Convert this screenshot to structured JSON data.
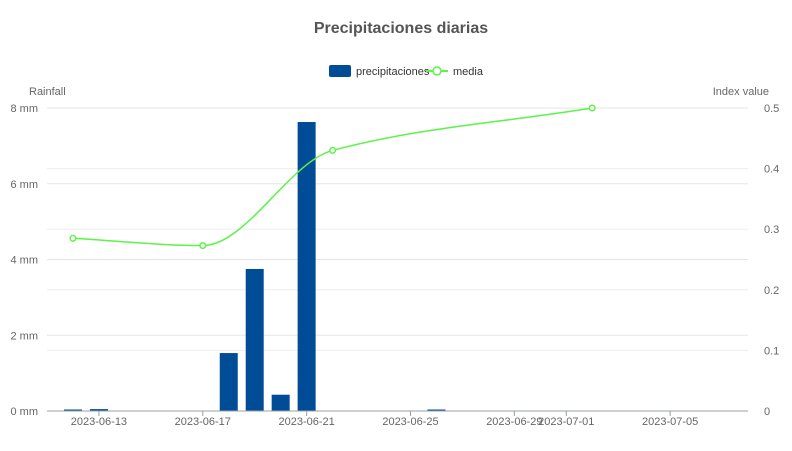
{
  "chart_data": {
    "type": "bar+line",
    "title": "Precipitaciones diarias",
    "legend": {
      "placement": "top-center",
      "items": [
        {
          "label": "precipitaciones",
          "color": "#004c97",
          "symbol": "bar"
        },
        {
          "label": "media",
          "color": "#5cf34a",
          "symbol": "line-circle"
        }
      ]
    },
    "x_axis": {
      "type": "time",
      "range": [
        "2023-06-11",
        "2023-07-08"
      ],
      "ticks": [
        "2023-06-13",
        "2023-06-17",
        "2023-06-21",
        "2023-06-25",
        "2023-06-29",
        "2023-07-01",
        "2023-07-05"
      ]
    },
    "y_axis_left": {
      "label": "Rainfall",
      "range": [
        0,
        8
      ],
      "ticks": [
        0,
        2,
        4,
        6,
        8
      ],
      "tick_labels": [
        "0 mm",
        "2 mm",
        "4 mm",
        "6 mm",
        "8 mm"
      ]
    },
    "y_axis_right": {
      "label": "Index value",
      "range": [
        0,
        0.5
      ],
      "ticks": [
        0,
        0.1,
        0.2,
        0.3,
        0.4,
        0.5
      ],
      "tick_labels": [
        "0",
        "0.1",
        "0.2",
        "0.3",
        "0.4",
        "0.5"
      ]
    },
    "grid": true,
    "series": [
      {
        "name": "precipitaciones",
        "type": "bar",
        "axis": "left",
        "color": "#004c97",
        "points": [
          {
            "x": "2023-06-12",
            "y": 0.02
          },
          {
            "x": "2023-06-13",
            "y": 0.05
          },
          {
            "x": "2023-06-18",
            "y": 1.53
          },
          {
            "x": "2023-06-19",
            "y": 3.75
          },
          {
            "x": "2023-06-20",
            "y": 0.43
          },
          {
            "x": "2023-06-21",
            "y": 7.63
          },
          {
            "x": "2023-06-26",
            "y": 0.02
          }
        ]
      },
      {
        "name": "media",
        "type": "line",
        "axis": "right",
        "color": "#5cf34a",
        "points": [
          {
            "x": "2023-06-12",
            "y": 0.285
          },
          {
            "x": "2023-06-17",
            "y": 0.273
          },
          {
            "x": "2023-06-22",
            "y": 0.43
          },
          {
            "x": "2023-07-02",
            "y": 0.5
          }
        ]
      }
    ]
  }
}
